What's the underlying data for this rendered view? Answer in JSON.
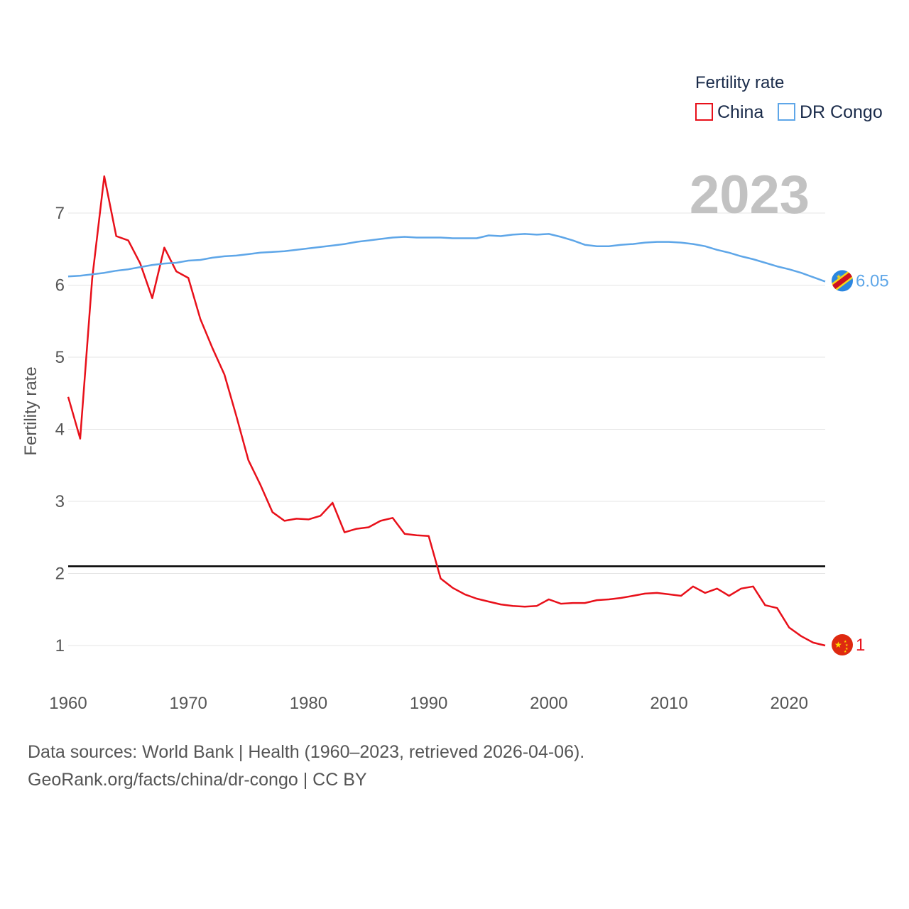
{
  "chart_data": {
    "type": "line",
    "legend_title": "Fertility rate",
    "ylabel": "Fertility rate",
    "year_label": "2023",
    "xlim": [
      1960,
      2023
    ],
    "ylim": [
      0.5,
      7.5
    ],
    "x_ticks": [
      1960,
      1970,
      1980,
      1990,
      2000,
      2010,
      2020
    ],
    "y_ticks": [
      1,
      2,
      3,
      4,
      5,
      6,
      7
    ],
    "reference_line": {
      "value": 2.1,
      "color": "#000000"
    },
    "x": [
      1960,
      1961,
      1962,
      1963,
      1964,
      1965,
      1966,
      1967,
      1968,
      1969,
      1970,
      1971,
      1972,
      1973,
      1974,
      1975,
      1976,
      1977,
      1978,
      1979,
      1980,
      1981,
      1982,
      1983,
      1984,
      1985,
      1986,
      1987,
      1988,
      1989,
      1990,
      1991,
      1992,
      1993,
      1994,
      1995,
      1996,
      1997,
      1998,
      1999,
      2000,
      2001,
      2002,
      2003,
      2004,
      2005,
      2006,
      2007,
      2008,
      2009,
      2010,
      2011,
      2012,
      2013,
      2014,
      2015,
      2016,
      2017,
      2018,
      2019,
      2020,
      2021,
      2022,
      2023
    ],
    "series": [
      {
        "name": "China",
        "color": "#e8101a",
        "end_label": "1",
        "values": [
          4.45,
          3.87,
          6.09,
          7.51,
          6.68,
          6.62,
          6.3,
          5.82,
          6.52,
          6.19,
          6.1,
          5.53,
          5.13,
          4.76,
          4.18,
          3.57,
          3.23,
          2.85,
          2.73,
          2.76,
          2.75,
          2.8,
          2.98,
          2.57,
          2.62,
          2.64,
          2.73,
          2.77,
          2.55,
          2.53,
          2.52,
          1.93,
          1.8,
          1.71,
          1.65,
          1.61,
          1.57,
          1.55,
          1.54,
          1.55,
          1.64,
          1.58,
          1.59,
          1.59,
          1.63,
          1.64,
          1.66,
          1.69,
          1.72,
          1.73,
          1.71,
          1.69,
          1.82,
          1.73,
          1.79,
          1.69,
          1.79,
          1.82,
          1.56,
          1.52,
          1.25,
          1.13,
          1.04,
          1.0
        ]
      },
      {
        "name": "DR Congo",
        "color": "#5ea6e8",
        "end_label": "6.05",
        "values": [
          6.12,
          6.13,
          6.15,
          6.17,
          6.2,
          6.22,
          6.25,
          6.28,
          6.3,
          6.31,
          6.34,
          6.35,
          6.38,
          6.4,
          6.41,
          6.43,
          6.45,
          6.46,
          6.47,
          6.49,
          6.51,
          6.53,
          6.55,
          6.57,
          6.6,
          6.62,
          6.64,
          6.66,
          6.67,
          6.66,
          6.66,
          6.66,
          6.65,
          6.65,
          6.65,
          6.69,
          6.68,
          6.7,
          6.71,
          6.7,
          6.71,
          6.67,
          6.62,
          6.56,
          6.54,
          6.54,
          6.56,
          6.57,
          6.59,
          6.6,
          6.6,
          6.59,
          6.57,
          6.54,
          6.49,
          6.45,
          6.4,
          6.36,
          6.31,
          6.26,
          6.22,
          6.17,
          6.11,
          6.05
        ]
      }
    ]
  },
  "footer": {
    "line1": "Data sources: World Bank | Health (1960–2023, retrieved 2026-04-06).",
    "line2": "GeoRank.org/facts/china/dr-congo | CC BY"
  }
}
